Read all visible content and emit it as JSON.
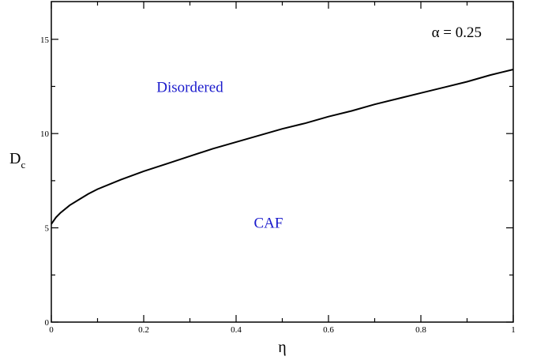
{
  "chart_data": {
    "type": "line",
    "title": "",
    "xlabel": "η",
    "ylabel": "D",
    "ylabel_subscript": "c",
    "xlim": [
      0,
      1
    ],
    "ylim": [
      0,
      17
    ],
    "x_ticks": [
      0,
      0.2,
      0.4,
      0.6,
      0.8,
      1
    ],
    "x_tick_labels": [
      "0",
      "0.2",
      "0.4",
      "0.6",
      "0.8",
      "1"
    ],
    "y_ticks": [
      0,
      5,
      10,
      15
    ],
    "y_tick_labels": [
      "0",
      "5",
      "10",
      "15"
    ],
    "grid": false,
    "series": [
      {
        "color": "#000000",
        "x": [
          0,
          0.01,
          0.02,
          0.04,
          0.06,
          0.08,
          0.1,
          0.15,
          0.2,
          0.25,
          0.3,
          0.35,
          0.4,
          0.45,
          0.5,
          0.55,
          0.6,
          0.65,
          0.7,
          0.75,
          0.8,
          0.85,
          0.9,
          0.95,
          1.0
        ],
        "y": [
          5.2,
          5.55,
          5.8,
          6.2,
          6.5,
          6.8,
          7.05,
          7.55,
          8.0,
          8.4,
          8.8,
          9.2,
          9.55,
          9.9,
          10.25,
          10.55,
          10.9,
          11.2,
          11.55,
          11.85,
          12.15,
          12.45,
          12.75,
          13.1,
          13.4
        ]
      }
    ],
    "annotations": [
      {
        "text": "Disordered",
        "x": 0.3,
        "y": 12.2,
        "color": "#1a1acc"
      },
      {
        "text": "CAF",
        "x": 0.47,
        "y": 5.0,
        "color": "#1a1acc"
      }
    ],
    "parameter_label": "α =  0.25"
  }
}
